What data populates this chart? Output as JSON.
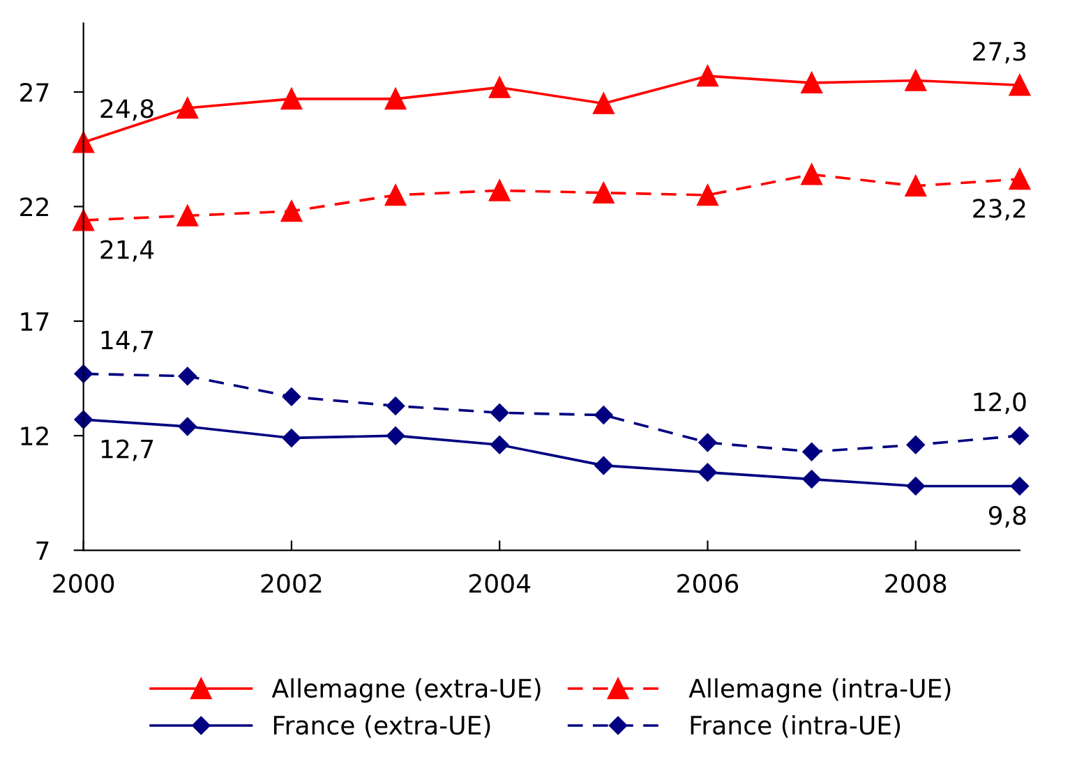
{
  "chart_data": {
    "type": "line",
    "x": [
      2000,
      2001,
      2002,
      2003,
      2004,
      2005,
      2006,
      2007,
      2008,
      2009
    ],
    "xlim": [
      2000,
      2009
    ],
    "xticks": [
      2000,
      2002,
      2004,
      2006,
      2008
    ],
    "ylim": [
      7,
      30
    ],
    "yticks": [
      7,
      12,
      17,
      22,
      27
    ],
    "grid": false,
    "legend": "bottom",
    "series": [
      {
        "name": "Allemagne (extra-UE)",
        "color": "#ff0000",
        "marker": "triangle",
        "line_style": "solid",
        "values": [
          24.8,
          26.3,
          26.7,
          26.7,
          27.2,
          26.5,
          27.7,
          27.4,
          27.5,
          27.3
        ],
        "value_labels": [
          "24,8",
          null,
          null,
          null,
          null,
          null,
          null,
          null,
          null,
          "27,3"
        ]
      },
      {
        "name": "Allemagne (intra-UE)",
        "color": "#ff0000",
        "marker": "triangle",
        "line_style": "dashed",
        "values": [
          21.4,
          21.6,
          21.8,
          22.5,
          22.7,
          22.6,
          22.5,
          23.4,
          22.9,
          23.2
        ],
        "value_labels": [
          "21,4",
          null,
          null,
          null,
          null,
          null,
          null,
          null,
          null,
          "23,2"
        ]
      },
      {
        "name": "France (extra-UE)",
        "color": "#000080",
        "marker": "diamond",
        "line_style": "solid",
        "values": [
          12.7,
          12.4,
          11.9,
          12.0,
          11.6,
          10.7,
          10.4,
          10.1,
          9.8,
          9.8
        ],
        "value_labels": [
          "12,7",
          null,
          null,
          null,
          null,
          null,
          null,
          null,
          null,
          "9,8"
        ]
      },
      {
        "name": "France (intra-UE)",
        "color": "#000080",
        "marker": "diamond",
        "line_style": "dashed",
        "values": [
          14.7,
          14.6,
          13.7,
          13.3,
          13.0,
          12.9,
          11.7,
          11.3,
          11.6,
          12.0
        ],
        "value_labels": [
          "14,7",
          null,
          null,
          null,
          null,
          null,
          null,
          null,
          null,
          "12,0"
        ]
      }
    ]
  }
}
